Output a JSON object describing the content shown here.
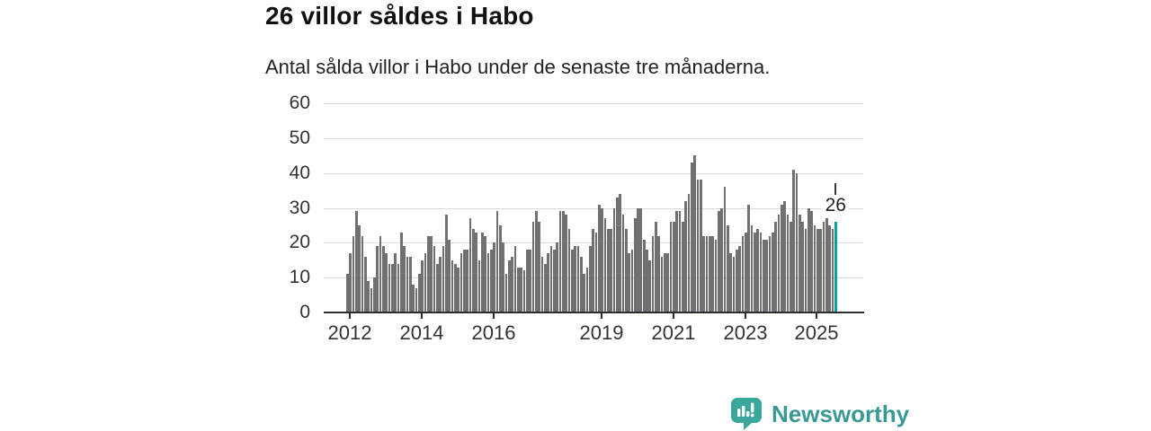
{
  "header": {
    "title": "26 villor såldes i Habo",
    "subtitle": "Antal sålda villor i Habo under de senaste tre månaderna."
  },
  "chart_data": {
    "type": "bar",
    "title": "26 villor såldes i Habo",
    "subtitle": "Antal sålda villor i Habo under de senaste tre månaderna.",
    "x_start": "2012-01",
    "frequency": "monthly",
    "values": [
      11,
      17,
      22,
      29,
      25,
      22,
      16,
      9,
      7,
      10,
      19,
      22,
      19,
      17,
      14,
      14,
      17,
      14,
      23,
      19,
      16,
      16,
      8,
      7,
      11,
      15,
      17,
      22,
      22,
      19,
      14,
      16,
      19,
      28,
      21,
      15,
      14,
      13,
      17,
      18,
      18,
      27,
      24,
      23,
      15,
      23,
      22,
      17,
      18,
      20,
      29,
      25,
      20,
      11,
      15,
      16,
      19,
      13,
      13,
      12,
      18,
      18,
      26,
      29,
      26,
      16,
      14,
      17,
      19,
      18,
      20,
      29,
      29,
      28,
      24,
      18,
      19,
      19,
      16,
      11,
      13,
      19,
      24,
      23,
      31,
      30,
      27,
      24,
      24,
      30,
      33,
      34,
      28,
      24,
      17,
      18,
      27,
      30,
      30,
      21,
      18,
      15,
      22,
      26,
      22,
      16,
      17,
      17,
      26,
      26,
      29,
      29,
      26,
      32,
      34,
      43,
      45,
      38,
      38,
      22,
      22,
      22,
      22,
      21,
      29,
      30,
      36,
      25,
      17,
      16,
      18,
      19,
      22,
      23,
      31,
      25,
      23,
      24,
      23,
      21,
      21,
      22,
      23,
      26,
      28,
      31,
      32,
      28,
      26,
      41,
      40,
      28,
      26,
      24,
      30,
      29,
      25,
      24,
      24,
      26,
      27,
      25,
      24,
      26
    ],
    "highlight_last": true,
    "highlight_value": 26,
    "annotation_label": "26",
    "y_ticks": [
      0,
      10,
      20,
      30,
      40,
      50,
      60
    ],
    "ylim": [
      0,
      60
    ],
    "x_tick_years": [
      2012,
      2014,
      2016,
      2019,
      2021,
      2023,
      2025
    ],
    "x_tick_labels": [
      "2012",
      "2014",
      "2016",
      "2019",
      "2021",
      "2023",
      "2025"
    ],
    "grid": true,
    "legend": "none",
    "bar_color": "#6f6f74",
    "highlight_color": "#00a39c"
  },
  "footer": {
    "brand": "Newsworthy",
    "logo_icon": "bar-chart-speech-bubble-icon",
    "logo_color": "#3aa79c"
  },
  "colors": {
    "bar_gray": "#6f6f74",
    "highlight_teal": "#00a39c",
    "gridline": "#dcdcdc",
    "axis": "#2e2e2e",
    "label": "#333333",
    "brand_teal": "#3a9a93"
  }
}
